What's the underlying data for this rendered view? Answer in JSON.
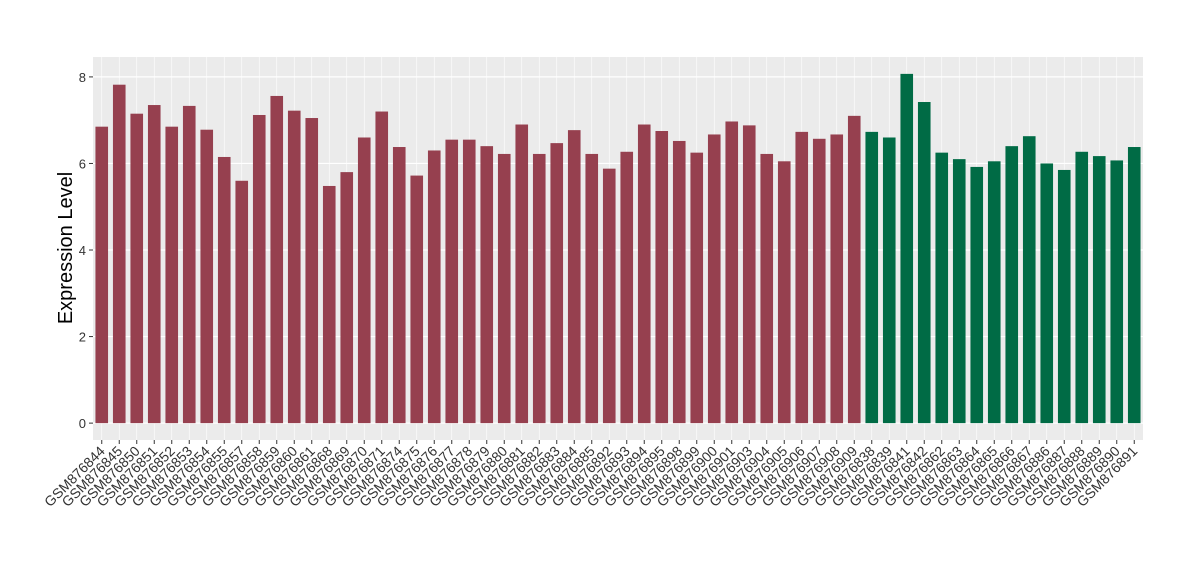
{
  "chart_data": {
    "type": "bar",
    "y_label": "Expression Level",
    "categories": [
      "GSM876844",
      "GSM876845",
      "GSM876850",
      "GSM876851",
      "GSM876852",
      "GSM876853",
      "GSM876854",
      "GSM876855",
      "GSM876857",
      "GSM876858",
      "GSM876859",
      "GSM876860",
      "GSM876861",
      "GSM876868",
      "GSM876869",
      "GSM876870",
      "GSM876871",
      "GSM876874",
      "GSM876875",
      "GSM876876",
      "GSM876877",
      "GSM876878",
      "GSM876879",
      "GSM876880",
      "GSM876881",
      "GSM876882",
      "GSM876883",
      "GSM876884",
      "GSM876885",
      "GSM876892",
      "GSM876893",
      "GSM876894",
      "GSM876895",
      "GSM876898",
      "GSM876899",
      "GSM876900",
      "GSM876901",
      "GSM876903",
      "GSM876904",
      "GSM876905",
      "GSM876906",
      "GSM876907",
      "GSM876908",
      "GSM876909",
      "GSM876838",
      "GSM876839",
      "GSM876841",
      "GSM876842",
      "GSM876862",
      "GSM876863",
      "GSM876864",
      "GSM876865",
      "GSM876866",
      "GSM876867",
      "GSM876886",
      "GSM876887",
      "GSM876888",
      "GSM876889",
      "GSM876890",
      "GSM876891"
    ],
    "values": [
      6.85,
      7.82,
      7.15,
      7.35,
      6.85,
      7.33,
      6.78,
      6.15,
      5.6,
      7.12,
      7.56,
      7.22,
      7.05,
      5.48,
      5.8,
      6.6,
      7.2,
      6.38,
      5.72,
      6.3,
      6.55,
      6.55,
      6.4,
      6.22,
      6.9,
      6.22,
      6.47,
      6.77,
      6.22,
      5.88,
      6.27,
      6.9,
      6.75,
      6.52,
      6.25,
      6.67,
      6.97,
      6.88,
      6.22,
      6.05,
      6.73,
      6.57,
      6.67,
      7.1,
      6.73,
      6.6,
      8.07,
      7.42,
      6.25,
      6.1,
      5.92,
      6.05,
      6.4,
      6.63,
      6.0,
      5.85,
      6.27,
      6.17,
      6.07,
      6.38
    ],
    "colors": [
      "#96404f",
      "#96404f",
      "#96404f",
      "#96404f",
      "#96404f",
      "#96404f",
      "#96404f",
      "#96404f",
      "#96404f",
      "#96404f",
      "#96404f",
      "#96404f",
      "#96404f",
      "#96404f",
      "#96404f",
      "#96404f",
      "#96404f",
      "#96404f",
      "#96404f",
      "#96404f",
      "#96404f",
      "#96404f",
      "#96404f",
      "#96404f",
      "#96404f",
      "#96404f",
      "#96404f",
      "#96404f",
      "#96404f",
      "#96404f",
      "#96404f",
      "#96404f",
      "#96404f",
      "#96404f",
      "#96404f",
      "#96404f",
      "#96404f",
      "#96404f",
      "#96404f",
      "#96404f",
      "#96404f",
      "#96404f",
      "#96404f",
      "#96404f",
      "#006b45",
      "#006b45",
      "#006b45",
      "#006b45",
      "#006b45",
      "#006b45",
      "#006b45",
      "#006b45",
      "#006b45",
      "#006b45",
      "#006b45",
      "#006b45",
      "#006b45",
      "#006b45",
      "#006b45",
      "#006b45"
    ],
    "ylim": [
      -0.39,
      8.46
    ],
    "yticks": [
      0,
      2,
      4,
      6,
      8
    ],
    "grid": true
  }
}
